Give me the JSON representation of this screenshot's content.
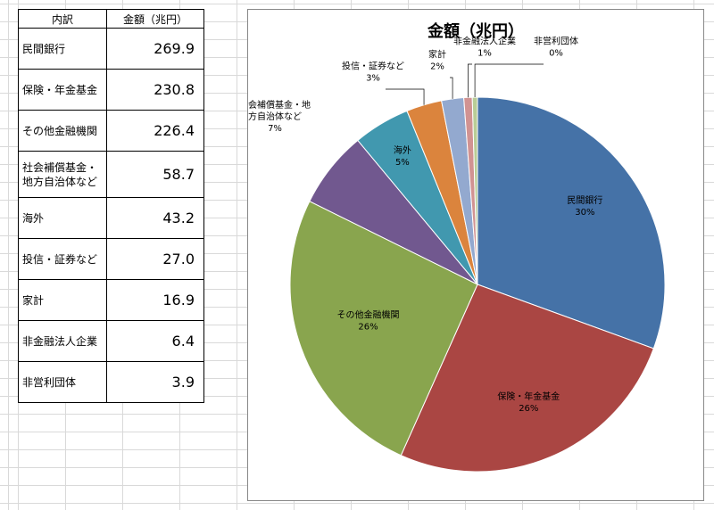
{
  "table": {
    "headers": [
      "内訳",
      "金額（兆円）"
    ],
    "rows": [
      {
        "name": "民間銀行",
        "value": "269.9"
      },
      {
        "name": "保険・年金基金",
        "value": "230.8"
      },
      {
        "name": "その他金融機関",
        "value": "226.4"
      },
      {
        "name": "社会補償基金・地方自治体など",
        "value": "58.7"
      },
      {
        "name": "海外",
        "value": "43.2"
      },
      {
        "name": "投信・証券など",
        "value": "27.0"
      },
      {
        "name": "家計",
        "value": "16.9"
      },
      {
        "name": "非金融法人企業",
        "value": "6.4"
      },
      {
        "name": "非営利団体",
        "value": "3.9"
      }
    ]
  },
  "chart_data": {
    "type": "pie",
    "title": "金額（兆円）",
    "categories": [
      "民間銀行",
      "保険・年金基金",
      "その他金融機関",
      "社会補償基金・地方自治体など",
      "海外",
      "投信・証券など",
      "家計",
      "非金融法人企業",
      "非営利団体"
    ],
    "values": [
      269.9,
      230.8,
      226.4,
      58.7,
      43.2,
      27.0,
      16.9,
      6.4,
      3.9
    ],
    "percent_labels": [
      "30%",
      "26%",
      "26%",
      "7%",
      "5%",
      "3%",
      "2%",
      "1%",
      "0%"
    ],
    "colors": [
      "#4572a7",
      "#aa4643",
      "#89a54e",
      "#71588f",
      "#4198af",
      "#db843d",
      "#93a9cf",
      "#d19392",
      "#b9cd96"
    ],
    "start": "12 o'clock, clockwise"
  }
}
